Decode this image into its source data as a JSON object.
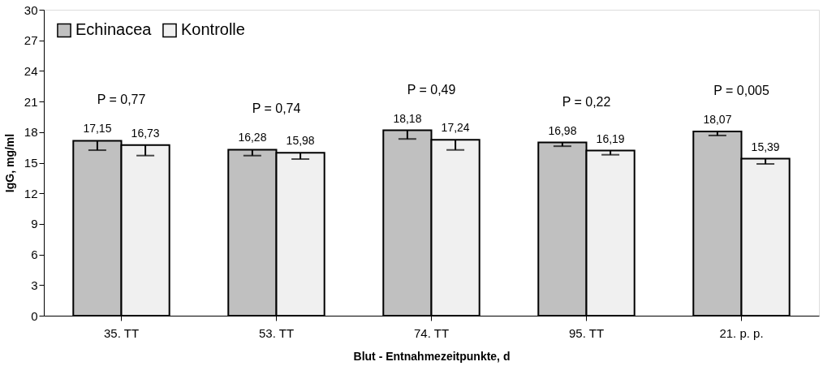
{
  "chart_data": {
    "type": "bar",
    "categories": [
      "35. TT",
      "53. TT",
      "74. TT",
      "95. TT",
      "21. p. p."
    ],
    "series": [
      {
        "name": "Echinacea",
        "color": "#c0c0c0",
        "values": [
          17.15,
          16.28,
          18.18,
          16.98,
          18.07
        ],
        "value_labels": [
          "17,15",
          "16,28",
          "18,18",
          "16,98",
          "18,07"
        ],
        "errors": [
          [
            16.23,
            17.15
          ],
          [
            15.7,
            16.28
          ],
          [
            17.33,
            18.18
          ],
          [
            16.62,
            16.98
          ],
          [
            17.67,
            18.07
          ]
        ]
      },
      {
        "name": "Kontrolle",
        "color": "#f0f0f0",
        "values": [
          16.73,
          15.98,
          17.24,
          16.19,
          15.39
        ],
        "value_labels": [
          "16,73",
          "15,98",
          "17,24",
          "16,19",
          "15,39"
        ],
        "errors": [
          [
            15.7,
            16.73
          ],
          [
            15.36,
            15.98
          ],
          [
            16.26,
            17.24
          ],
          [
            15.78,
            16.19
          ],
          [
            14.88,
            15.39
          ]
        ]
      }
    ],
    "xlabel": "Blut - Entnahmezeitpunkte, d",
    "ylabel": "IgG, mg/ml",
    "ylim": [
      0,
      30
    ],
    "yticks": [
      0,
      3,
      6,
      9,
      12,
      15,
      18,
      21,
      24,
      27,
      30
    ],
    "grid": false,
    "legend": "top left",
    "annotations": [
      "P = 0,77",
      "P = 0,74",
      "P = 0,49",
      "P = 0,22",
      "P = 0,005"
    ]
  }
}
